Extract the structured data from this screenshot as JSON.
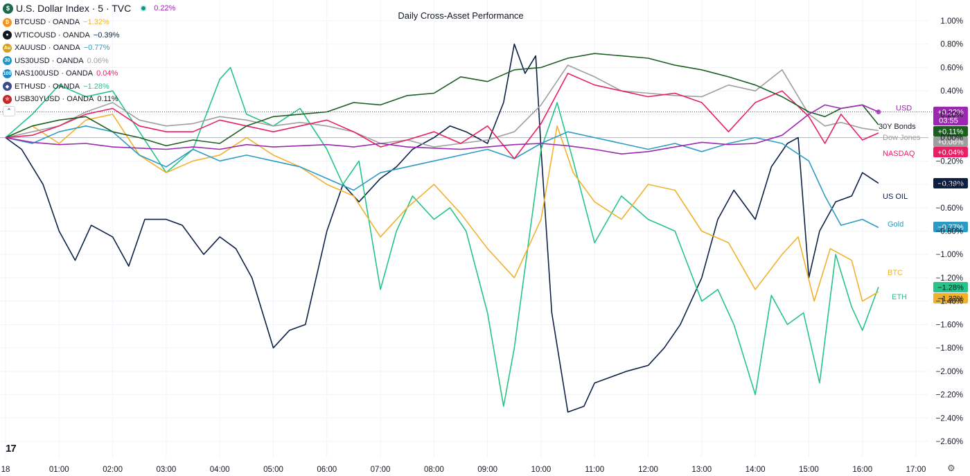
{
  "title": "Daily Cross-Asset Performance",
  "main_symbol": {
    "label": "U.S. Dollar Index · 5 · TVC",
    "value": "0.22%",
    "color": "#9c27b0",
    "icon": "dollar-icon"
  },
  "legend": [
    {
      "label": "BTCUSD · OANDA",
      "value": "−1.32%",
      "color": "#f2b12b",
      "icon_text": "₿",
      "icon_color": "#f7931a"
    },
    {
      "label": "WTICOUSD · OANDA",
      "value": "−0.39%",
      "color": "#0c1f44",
      "icon_text": "●",
      "icon_color": "#131722"
    },
    {
      "label": "XAUUSD · OANDA",
      "value": "−0.77%",
      "color": "#2b9bc4",
      "icon_text": "Au",
      "icon_color": "#d4a017"
    },
    {
      "label": "US30USD · OANDA",
      "value": "0.06%",
      "color": "#9e9e9e",
      "icon_text": "30",
      "icon_color": "#2196c8"
    },
    {
      "label": "NAS100USD · OANDA",
      "value": "0.04%",
      "color": "#e91e63",
      "icon_text": "100",
      "icon_color": "#1e88c8"
    },
    {
      "label": "ETHUSD · OANDA",
      "value": "−1.28%",
      "color": "#26c486",
      "icon_text": "◆",
      "icon_color": "#3c4a8c"
    },
    {
      "label": "USB30YUSD · OANDA",
      "value": "0.11%",
      "color": "#131722",
      "icon_text": "☆",
      "icon_color": "#c62828"
    }
  ],
  "tv_logo": "17",
  "chart_data": {
    "type": "line",
    "title": "Daily Cross-Asset Performance",
    "x_ticks": [
      "18",
      "01:00",
      "02:00",
      "03:00",
      "04:00",
      "05:00",
      "06:00",
      "07:00",
      "08:00",
      "09:00",
      "10:00",
      "11:00",
      "12:00",
      "13:00",
      "14:00",
      "15:00",
      "16:00",
      "17:00"
    ],
    "y_ticks": [
      "1.00%",
      "0.80%",
      "0.60%",
      "0.40%",
      "0.20%",
      "0.00%",
      "−0.20%",
      "−0.40%",
      "−0.60%",
      "−0.80%",
      "−1.00%",
      "−1.20%",
      "−1.40%",
      "−1.60%",
      "−1.80%",
      "−2.00%",
      "−2.20%",
      "−2.40%",
      "−2.60%"
    ],
    "ylim": [
      -2.6,
      1.0
    ],
    "xlim": [
      0,
      17
    ],
    "series": [
      {
        "name": "USD",
        "color": "#9c27b0",
        "badge": "+0.22%",
        "countdown": "03:55",
        "x": [
          0,
          0.5,
          1,
          1.5,
          2,
          2.5,
          3,
          3.5,
          4,
          4.5,
          5,
          5.5,
          6,
          6.5,
          7,
          7.5,
          8,
          8.5,
          9,
          9.5,
          10,
          10.5,
          11,
          11.5,
          12,
          12.5,
          13,
          13.5,
          14,
          14.5,
          15,
          15.3,
          15.6,
          16,
          16.3
        ],
        "y": [
          0.0,
          -0.04,
          -0.06,
          -0.05,
          -0.08,
          -0.09,
          -0.1,
          -0.08,
          -0.1,
          -0.06,
          -0.08,
          -0.07,
          -0.06,
          -0.08,
          -0.05,
          -0.08,
          -0.09,
          -0.1,
          -0.08,
          -0.06,
          -0.05,
          -0.07,
          -0.1,
          -0.14,
          -0.12,
          -0.08,
          -0.04,
          -0.06,
          -0.05,
          0.02,
          0.2,
          0.28,
          0.25,
          0.28,
          0.22
        ]
      },
      {
        "name": "30Y Bonds",
        "color": "#1b5e20",
        "badge": "+0.11%",
        "x": [
          0,
          0.5,
          1,
          1.5,
          2,
          2.5,
          3,
          3.5,
          4,
          4.5,
          5,
          5.5,
          6,
          6.5,
          7,
          7.5,
          8,
          8.5,
          9,
          9.5,
          10,
          10.5,
          11,
          11.5,
          12,
          12.5,
          13,
          13.5,
          14,
          14.5,
          15,
          15.3,
          15.6,
          16,
          16.3
        ],
        "y": [
          0.0,
          0.1,
          0.15,
          0.18,
          0.05,
          0.0,
          -0.07,
          -0.02,
          -0.05,
          0.1,
          0.18,
          0.2,
          0.22,
          0.3,
          0.28,
          0.36,
          0.38,
          0.52,
          0.48,
          0.58,
          0.6,
          0.68,
          0.72,
          0.7,
          0.68,
          0.62,
          0.58,
          0.52,
          0.45,
          0.35,
          0.22,
          0.18,
          0.25,
          0.28,
          0.11
        ]
      },
      {
        "name": "Dow Jones",
        "color": "#9e9e9e",
        "badge": "+0.06%",
        "x": [
          0,
          0.5,
          1,
          1.5,
          2,
          2.5,
          3,
          3.5,
          4,
          4.5,
          5,
          5.5,
          6,
          6.5,
          7,
          7.5,
          8,
          8.5,
          9,
          9.5,
          10,
          10.5,
          11,
          11.5,
          12,
          12.5,
          13,
          13.5,
          14,
          14.5,
          15,
          15.3,
          15.6,
          16,
          16.3
        ],
        "y": [
          0.0,
          0.05,
          0.1,
          0.22,
          0.3,
          0.15,
          0.1,
          0.12,
          0.18,
          0.15,
          0.1,
          0.13,
          0.1,
          0.05,
          -0.05,
          -0.02,
          -0.08,
          -0.05,
          -0.02,
          0.05,
          0.28,
          0.62,
          0.52,
          0.4,
          0.38,
          0.36,
          0.35,
          0.45,
          0.4,
          0.58,
          0.2,
          0.1,
          0.13,
          0.08,
          0.06
        ]
      },
      {
        "name": "NASDAQ",
        "color": "#e91e63",
        "badge": "+0.04%",
        "x": [
          0,
          0.5,
          1,
          1.5,
          2,
          2.5,
          3,
          3.5,
          4,
          4.5,
          5,
          5.5,
          6,
          6.5,
          7,
          7.5,
          8,
          8.5,
          9,
          9.5,
          10,
          10.5,
          11,
          11.5,
          12,
          12.5,
          13,
          13.5,
          14,
          14.5,
          15,
          15.3,
          15.6,
          16,
          16.3
        ],
        "y": [
          0.0,
          0.02,
          0.1,
          0.2,
          0.25,
          0.1,
          0.05,
          0.05,
          0.15,
          0.1,
          0.05,
          0.1,
          0.15,
          0.05,
          -0.08,
          -0.02,
          0.05,
          -0.05,
          0.1,
          -0.18,
          0.12,
          0.55,
          0.45,
          0.4,
          0.35,
          0.38,
          0.3,
          0.05,
          0.3,
          0.4,
          0.18,
          -0.05,
          0.2,
          -0.02,
          0.04
        ]
      },
      {
        "name": "US OIL",
        "color": "#0c1f44",
        "badge": "−0.39%",
        "x": [
          0,
          0.3,
          0.7,
          1,
          1.3,
          1.6,
          2,
          2.3,
          2.6,
          3,
          3.3,
          3.7,
          4,
          4.3,
          4.6,
          5,
          5.3,
          5.6,
          6,
          6.3,
          6.6,
          7,
          7.3,
          7.6,
          8,
          8.3,
          8.6,
          9,
          9.3,
          9.5,
          9.7,
          9.9,
          10,
          10.2,
          10.5,
          10.8,
          11,
          11.3,
          11.6,
          12,
          12.3,
          12.6,
          13,
          13.3,
          13.6,
          14,
          14.3,
          14.6,
          14.8,
          15,
          15.2,
          15.5,
          15.8,
          16,
          16.3
        ],
        "y": [
          0.0,
          -0.1,
          -0.4,
          -0.8,
          -1.05,
          -0.75,
          -0.85,
          -1.1,
          -0.7,
          -0.7,
          -0.75,
          -1.0,
          -0.85,
          -0.95,
          -1.2,
          -1.8,
          -1.65,
          -1.6,
          -0.8,
          -0.4,
          -0.55,
          -0.35,
          -0.25,
          -0.1,
          0.0,
          0.1,
          0.05,
          -0.05,
          0.3,
          0.8,
          0.55,
          0.7,
          -0.1,
          -1.5,
          -2.35,
          -2.3,
          -2.1,
          -2.05,
          -2.0,
          -1.95,
          -1.8,
          -1.6,
          -1.2,
          -0.7,
          -0.45,
          -0.7,
          -0.25,
          -0.05,
          0.0,
          -1.2,
          -0.8,
          -0.55,
          -0.5,
          -0.3,
          -0.39
        ]
      },
      {
        "name": "Gold",
        "color": "#2b9bc4",
        "badge": "−0.77%",
        "x": [
          0,
          0.5,
          1,
          1.5,
          2,
          2.5,
          3,
          3.5,
          4,
          4.5,
          5,
          5.5,
          6,
          6.5,
          7,
          7.5,
          8,
          8.5,
          9,
          9.5,
          10,
          10.5,
          11,
          11.5,
          12,
          12.5,
          13,
          13.5,
          14,
          14.5,
          15,
          15.3,
          15.6,
          16,
          16.3
        ],
        "y": [
          0.0,
          -0.05,
          0.05,
          0.1,
          0.05,
          -0.15,
          -0.25,
          -0.1,
          -0.2,
          -0.15,
          -0.2,
          -0.25,
          -0.35,
          -0.45,
          -0.3,
          -0.25,
          -0.2,
          -0.15,
          -0.1,
          -0.18,
          -0.05,
          0.05,
          0.0,
          -0.05,
          -0.1,
          -0.05,
          -0.12,
          -0.05,
          0.0,
          -0.05,
          -0.2,
          -0.5,
          -0.75,
          -0.7,
          -0.77
        ]
      },
      {
        "name": "BTC",
        "color": "#f2b12b",
        "badge": "−1.32%",
        "x": [
          0,
          0.5,
          1,
          1.5,
          2,
          2.5,
          3,
          3.5,
          4,
          4.5,
          5,
          5.5,
          6,
          6.5,
          7,
          7.5,
          8,
          8.5,
          9,
          9.5,
          10,
          10.3,
          10.6,
          11,
          11.5,
          12,
          12.5,
          13,
          13.5,
          14,
          14.5,
          14.8,
          15.1,
          15.4,
          15.8,
          16,
          16.3
        ],
        "y": [
          0.0,
          0.1,
          -0.05,
          0.15,
          0.2,
          -0.15,
          -0.3,
          -0.2,
          -0.15,
          0.0,
          -0.15,
          -0.25,
          -0.4,
          -0.5,
          -0.85,
          -0.6,
          -0.4,
          -0.65,
          -0.95,
          -1.2,
          -0.7,
          0.1,
          -0.3,
          -0.55,
          -0.7,
          -0.4,
          -0.45,
          -0.8,
          -0.9,
          -1.3,
          -1.0,
          -0.85,
          -1.4,
          -0.95,
          -1.05,
          -1.4,
          -1.32
        ]
      },
      {
        "name": "ETH",
        "color": "#26c486",
        "badge": "−1.28%",
        "x": [
          0,
          0.5,
          1,
          1.5,
          2,
          2.5,
          3,
          3.5,
          4,
          4.2,
          4.5,
          5,
          5.5,
          6,
          6.3,
          6.6,
          7,
          7.3,
          7.6,
          8,
          8.3,
          8.6,
          9,
          9.3,
          9.5,
          10,
          10.3,
          10.6,
          11,
          11.5,
          12,
          12.5,
          13,
          13.3,
          13.6,
          14,
          14.3,
          14.6,
          14.9,
          15.2,
          15.5,
          15.8,
          16,
          16.3
        ],
        "y": [
          0.0,
          0.2,
          0.45,
          0.35,
          0.4,
          0.05,
          -0.3,
          -0.1,
          0.5,
          0.6,
          0.2,
          0.1,
          0.25,
          -0.1,
          -0.4,
          -0.2,
          -1.3,
          -0.8,
          -0.5,
          -0.7,
          -0.6,
          -0.8,
          -1.5,
          -2.3,
          -1.8,
          -0.1,
          0.3,
          -0.2,
          -0.9,
          -0.5,
          -0.7,
          -0.8,
          -1.4,
          -1.3,
          -1.6,
          -2.2,
          -1.35,
          -1.6,
          -1.5,
          -2.1,
          -1.0,
          -1.45,
          -1.65,
          -1.28
        ]
      }
    ],
    "series_labels": {
      "USD": "USD",
      "30Y Bonds": "30Y Bonds",
      "Dow Jones": "Dow Jones",
      "NASDAQ": "NASDAQ",
      "US OIL": "US OIL",
      "Gold": "Gold",
      "BTC": "BTC",
      "ETH": "ETH"
    },
    "grid": true,
    "legend_position": "top-left"
  }
}
